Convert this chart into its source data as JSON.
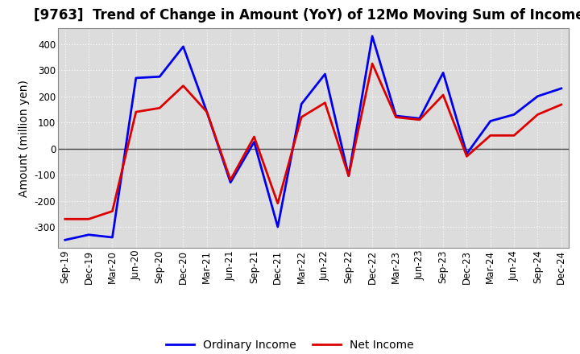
{
  "title": "[9763]  Trend of Change in Amount (YoY) of 12Mo Moving Sum of Incomes",
  "ylabel": "Amount (million yen)",
  "x_labels": [
    "Sep-19",
    "Dec-19",
    "Mar-20",
    "Jun-20",
    "Sep-20",
    "Dec-20",
    "Mar-21",
    "Jun-21",
    "Sep-21",
    "Dec-21",
    "Mar-22",
    "Jun-22",
    "Sep-22",
    "Dec-22",
    "Mar-23",
    "Jun-23",
    "Sep-23",
    "Dec-23",
    "Mar-24",
    "Jun-24",
    "Sep-24",
    "Dec-24"
  ],
  "ordinary_income": [
    -350,
    -330,
    -340,
    270,
    275,
    390,
    140,
    -130,
    25,
    -300,
    170,
    285,
    -105,
    430,
    125,
    115,
    290,
    -20,
    105,
    130,
    200,
    230
  ],
  "net_income": [
    -270,
    -270,
    -240,
    140,
    155,
    240,
    140,
    -120,
    45,
    -210,
    120,
    175,
    -105,
    325,
    120,
    110,
    205,
    -30,
    50,
    50,
    130,
    168
  ],
  "ylim": [
    -380,
    460
  ],
  "yticks": [
    -300,
    -200,
    -100,
    0,
    100,
    200,
    300,
    400
  ],
  "ordinary_color": "#0000ee",
  "net_color": "#dd0000",
  "fig_bg_color": "#ffffff",
  "plot_bg_color": "#dcdcdc",
  "grid_color": "#ffffff",
  "title_fontsize": 12,
  "axis_label_fontsize": 10,
  "tick_fontsize": 8.5,
  "legend_fontsize": 10,
  "linewidth": 2.0
}
